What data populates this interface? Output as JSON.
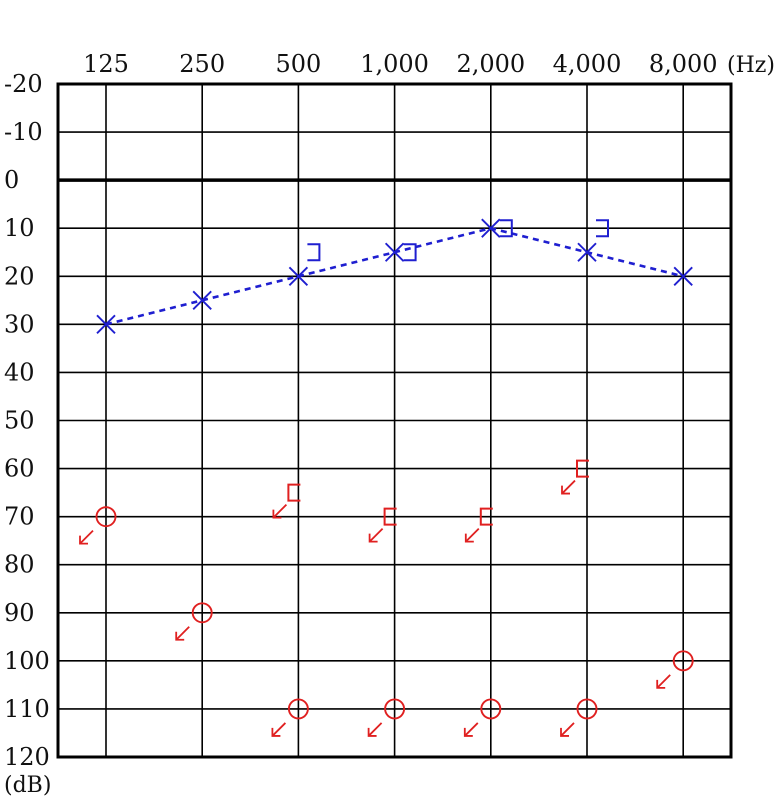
{
  "chart_data": {
    "type": "scatter",
    "title": "",
    "x_unit": "(Hz)",
    "y_unit": "(dB)",
    "x_categories": [
      "125",
      "250",
      "500",
      "1,000",
      "2,000",
      "4,000",
      "8,000"
    ],
    "y_ticks": [
      "-20",
      "-10",
      "0",
      "10",
      "20",
      "30",
      "40",
      "50",
      "60",
      "70",
      "80",
      "90",
      "100",
      "110",
      "120"
    ],
    "ylim": [
      -20,
      120
    ],
    "y_inverted": true,
    "grid": true,
    "legend": "none",
    "series": [
      {
        "marker": "x",
        "color": "#1f1fd0",
        "line": "dashed",
        "points": [
          {
            "x": "125",
            "y": 30
          },
          {
            "x": "250",
            "y": 25
          },
          {
            "x": "500",
            "y": 20
          },
          {
            "x": "1,000",
            "y": 15
          },
          {
            "x": "2,000",
            "y": 10
          },
          {
            "x": "4,000",
            "y": 15
          },
          {
            "x": "8,000",
            "y": 20
          }
        ]
      },
      {
        "marker": "bracket-right",
        "color": "#1f1fd0",
        "line": "none",
        "points": [
          {
            "x": "500",
            "y": 15
          },
          {
            "x": "1,000",
            "y": 15
          },
          {
            "x": "2,000",
            "y": 10
          },
          {
            "x": "4,000",
            "y": 10
          }
        ]
      },
      {
        "marker": "circle-no-response",
        "color": "#e02020",
        "line": "none",
        "points": [
          {
            "x": "125",
            "y": 70
          },
          {
            "x": "250",
            "y": 90
          },
          {
            "x": "500",
            "y": 110
          },
          {
            "x": "1,000",
            "y": 110
          },
          {
            "x": "2,000",
            "y": 110
          },
          {
            "x": "4,000",
            "y": 110
          },
          {
            "x": "8,000",
            "y": 100
          }
        ]
      },
      {
        "marker": "bracket-left-no-response",
        "color": "#e02020",
        "line": "none",
        "points": [
          {
            "x": "500",
            "y": 65
          },
          {
            "x": "1,000",
            "y": 70
          },
          {
            "x": "2,000",
            "y": 70
          },
          {
            "x": "4,000",
            "y": 60
          }
        ]
      }
    ]
  }
}
